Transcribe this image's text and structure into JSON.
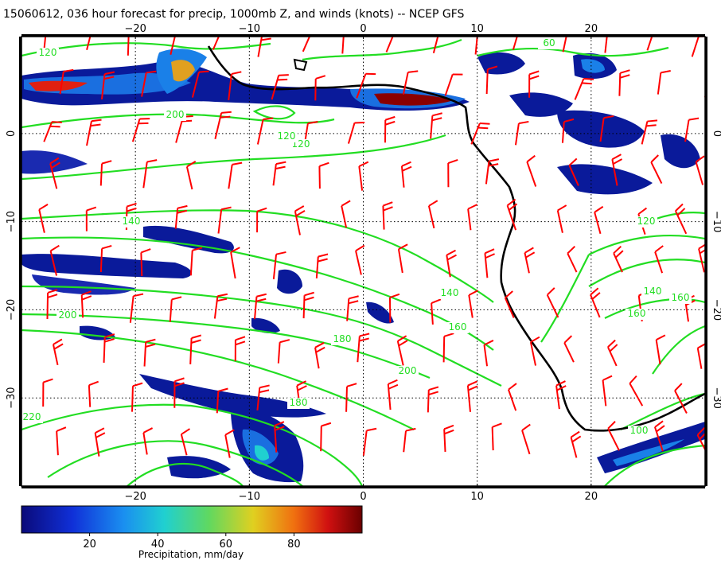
{
  "title": "15060612, 036 hour forecast for precip, 1000mb Z, and winds (knots) -- NCEP GFS",
  "map": {
    "lon_range": [
      -30,
      30
    ],
    "lat_range": [
      -40,
      11
    ],
    "x_ticks": [
      -20,
      -10,
      0,
      10,
      20
    ],
    "x_tick_labels": [
      "−20",
      "−10",
      "0",
      "10",
      "20"
    ],
    "y_ticks": [
      0,
      -10,
      -20,
      -30
    ],
    "y_tick_labels": [
      "0",
      "−10",
      "−20",
      "−30"
    ],
    "contour_labels": [
      "120",
      "120",
      "120",
      "120",
      "140",
      "140",
      "140",
      "160",
      "160",
      "160",
      "180",
      "180",
      "200",
      "200",
      "200",
      "220",
      "100",
      "60"
    ],
    "contour_color": "#22dd22",
    "barb_color": "#ff0000",
    "coast_color": "#000000"
  },
  "colorbar": {
    "label": "Precipitation, mm/day",
    "tick_labels": [
      "20",
      "40",
      "60",
      "80"
    ],
    "ticks": [
      20,
      40,
      60,
      80
    ],
    "range": [
      0,
      100
    ]
  }
}
